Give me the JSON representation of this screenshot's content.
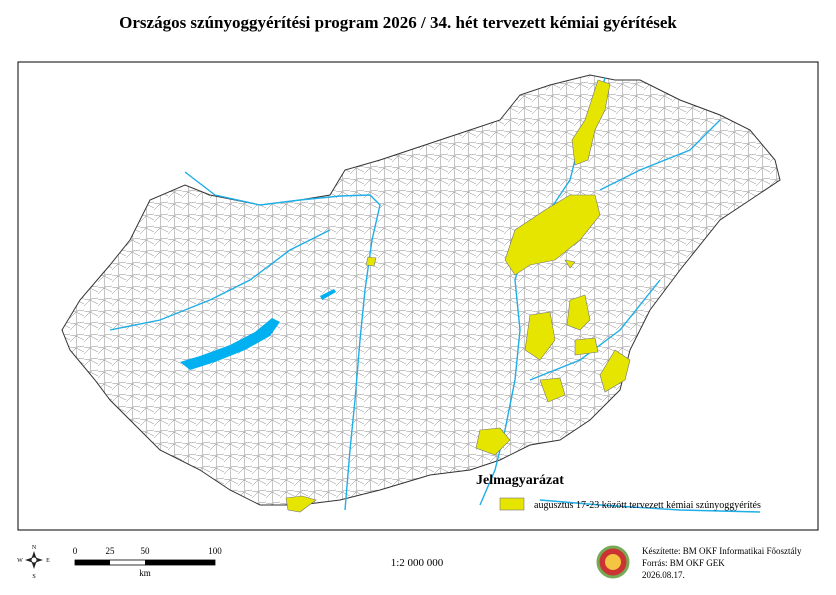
{
  "header": {
    "title": "Országos szúnyoggyérítési program 2026 / 34. hét tervezett kémiai gyérítések"
  },
  "legend": {
    "title": "Jelmagyarázat",
    "items": [
      "augusztus 17-23 között tervezett kémiai szúnyoggyérítés"
    ]
  },
  "compass": {
    "north": "N",
    "south": "S",
    "west": "W",
    "east": "E"
  },
  "scale_bar": {
    "labels": [
      "0",
      "25",
      "50",
      "100"
    ],
    "unit": "km",
    "ratio": "1:2 000 000"
  },
  "credits": [
    "Készítette: BM OKF Informatikai Főosztály",
    "Forrás: BM OKF GEK",
    "2026.08.17."
  ]
}
